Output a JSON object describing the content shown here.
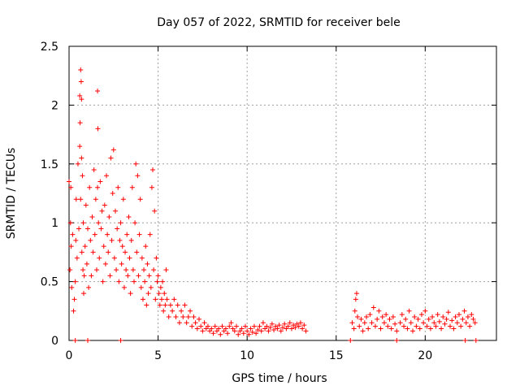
{
  "chart_data": {
    "type": "scatter",
    "title": "Day 057 of 2022, SRMTID for receiver bele",
    "xlabel": "GPS time / hours",
    "ylabel": "SRMTID / TECUs",
    "xlim": [
      0,
      24
    ],
    "ylim": [
      0,
      2.5
    ],
    "grid": true,
    "marker": "+",
    "color": "#ff0000",
    "x_ticks": [
      {
        "value": 0,
        "label": "0"
      },
      {
        "value": 5,
        "label": "5"
      },
      {
        "value": 10,
        "label": "10"
      },
      {
        "value": 15,
        "label": "15"
      },
      {
        "value": 20,
        "label": "20"
      }
    ],
    "y_ticks": [
      {
        "value": 0,
        "label": "0"
      },
      {
        "value": 0.5,
        "label": "0.5"
      },
      {
        "value": 1,
        "label": "1"
      },
      {
        "value": 1.5,
        "label": "1.5"
      },
      {
        "value": 2,
        "label": "2"
      },
      {
        "value": 2.5,
        "label": "2.5"
      }
    ],
    "series": [
      {
        "name": "SRMTID",
        "points": [
          [
            0.0,
            1.35
          ],
          [
            0.05,
            0.6
          ],
          [
            0.08,
            1.0
          ],
          [
            0.1,
            1.3
          ],
          [
            0.12,
            0.8
          ],
          [
            0.15,
            0.45
          ],
          [
            0.2,
            0.9
          ],
          [
            0.25,
            0.25
          ],
          [
            0.3,
            0.35
          ],
          [
            0.35,
            0.5
          ],
          [
            0.38,
            0.85
          ],
          [
            0.4,
            1.2
          ],
          [
            0.45,
            0.7
          ],
          [
            0.5,
            1.5
          ],
          [
            0.55,
            0.95
          ],
          [
            0.6,
            1.65
          ],
          [
            0.6,
            2.08
          ],
          [
            0.62,
            1.85
          ],
          [
            0.65,
            1.2
          ],
          [
            0.65,
            2.3
          ],
          [
            0.68,
            2.2
          ],
          [
            0.7,
            1.55
          ],
          [
            0.7,
            2.05
          ],
          [
            0.72,
            0.75
          ],
          [
            0.75,
            1.4
          ],
          [
            0.78,
            0.6
          ],
          [
            0.8,
            1.0
          ],
          [
            0.82,
            0.4
          ],
          [
            0.85,
            0.55
          ],
          [
            0.9,
            0.8
          ],
          [
            0.95,
            1.15
          ],
          [
            1.0,
            0.65
          ],
          [
            1.05,
            0.95
          ],
          [
            1.1,
            0.45
          ],
          [
            1.15,
            1.3
          ],
          [
            1.2,
            0.85
          ],
          [
            1.25,
            0.55
          ],
          [
            1.3,
            1.05
          ],
          [
            1.35,
            0.75
          ],
          [
            1.4,
            1.45
          ],
          [
            1.45,
            0.9
          ],
          [
            1.5,
            1.2
          ],
          [
            1.55,
            0.6
          ],
          [
            1.6,
            1.3
          ],
          [
            1.6,
            2.12
          ],
          [
            1.62,
            1.8
          ],
          [
            1.65,
            1.0
          ],
          [
            1.7,
            0.7
          ],
          [
            1.75,
            1.35
          ],
          [
            1.8,
            0.95
          ],
          [
            1.85,
            1.1
          ],
          [
            1.9,
            0.5
          ],
          [
            1.95,
            0.8
          ],
          [
            2.0,
            1.15
          ],
          [
            2.05,
            0.65
          ],
          [
            2.1,
            1.4
          ],
          [
            2.15,
            0.9
          ],
          [
            2.2,
            0.75
          ],
          [
            2.25,
            1.05
          ],
          [
            2.3,
            0.55
          ],
          [
            2.35,
            1.55
          ],
          [
            2.4,
            0.85
          ],
          [
            2.45,
            1.25
          ],
          [
            2.5,
            1.62
          ],
          [
            2.55,
            0.7
          ],
          [
            2.6,
            1.1
          ],
          [
            2.65,
            0.6
          ],
          [
            2.7,
            0.95
          ],
          [
            2.75,
            1.3
          ],
          [
            2.8,
            0.5
          ],
          [
            2.85,
            0.85
          ],
          [
            2.9,
            1.0
          ],
          [
            2.95,
            0.65
          ],
          [
            3.0,
            0.8
          ],
          [
            3.05,
            1.2
          ],
          [
            3.1,
            0.45
          ],
          [
            3.15,
            0.75
          ],
          [
            3.2,
            0.6
          ],
          [
            3.25,
            0.9
          ],
          [
            3.3,
            0.55
          ],
          [
            3.35,
            1.05
          ],
          [
            3.4,
            0.7
          ],
          [
            3.45,
            0.4
          ],
          [
            3.5,
            0.85
          ],
          [
            3.55,
            1.3
          ],
          [
            3.6,
            0.6
          ],
          [
            3.65,
            0.5
          ],
          [
            3.7,
            1.0
          ],
          [
            3.75,
            1.5
          ],
          [
            3.8,
            0.75
          ],
          [
            3.85,
            1.4
          ],
          [
            3.9,
            0.55
          ],
          [
            3.95,
            0.9
          ],
          [
            4.0,
            1.2
          ],
          [
            4.05,
            0.45
          ],
          [
            4.1,
            0.7
          ],
          [
            4.15,
            0.35
          ],
          [
            4.2,
            0.6
          ],
          [
            4.25,
            0.5
          ],
          [
            4.3,
            0.8
          ],
          [
            4.35,
            0.3
          ],
          [
            4.4,
            0.65
          ],
          [
            4.45,
            0.4
          ],
          [
            4.5,
            0.55
          ],
          [
            4.55,
            0.9
          ],
          [
            4.6,
            0.45
          ],
          [
            4.65,
            1.3
          ],
          [
            4.7,
            1.45
          ],
          [
            4.75,
            0.6
          ],
          [
            4.8,
            1.1
          ],
          [
            4.85,
            0.35
          ],
          [
            4.9,
            0.7
          ],
          [
            4.95,
            0.5
          ],
          [
            5.0,
            0.55
          ],
          [
            5.05,
            0.4
          ],
          [
            5.1,
            0.3
          ],
          [
            5.15,
            0.45
          ],
          [
            5.2,
            0.35
          ],
          [
            5.25,
            0.5
          ],
          [
            5.3,
            0.25
          ],
          [
            5.35,
            0.4
          ],
          [
            5.4,
            0.3
          ],
          [
            5.45,
            0.6
          ],
          [
            5.5,
            0.35
          ],
          [
            5.6,
            0.2
          ],
          [
            5.7,
            0.3
          ],
          [
            5.8,
            0.25
          ],
          [
            5.9,
            0.35
          ],
          [
            6.0,
            0.2
          ],
          [
            6.1,
            0.3
          ],
          [
            6.2,
            0.15
          ],
          [
            6.3,
            0.25
          ],
          [
            6.4,
            0.2
          ],
          [
            6.5,
            0.3
          ],
          [
            6.6,
            0.15
          ],
          [
            6.7,
            0.2
          ],
          [
            6.8,
            0.25
          ],
          [
            6.9,
            0.12
          ],
          [
            7.0,
            0.2
          ],
          [
            7.1,
            0.15
          ],
          [
            7.2,
            0.1
          ],
          [
            7.3,
            0.18
          ],
          [
            7.4,
            0.12
          ],
          [
            7.5,
            0.08
          ],
          [
            7.6,
            0.15
          ],
          [
            7.7,
            0.1
          ],
          [
            7.8,
            0.12
          ],
          [
            7.9,
            0.08
          ],
          [
            8.0,
            0.1
          ],
          [
            8.1,
            0.06
          ],
          [
            8.2,
            0.12
          ],
          [
            8.3,
            0.08
          ],
          [
            8.4,
            0.1
          ],
          [
            8.5,
            0.05
          ],
          [
            8.6,
            0.12
          ],
          [
            8.7,
            0.08
          ],
          [
            8.8,
            0.1
          ],
          [
            8.9,
            0.06
          ],
          [
            9.0,
            0.12
          ],
          [
            9.1,
            0.15
          ],
          [
            9.2,
            0.1
          ],
          [
            9.3,
            0.08
          ],
          [
            9.4,
            0.12
          ],
          [
            9.5,
            0.05
          ],
          [
            9.6,
            0.08
          ],
          [
            9.7,
            0.1
          ],
          [
            9.8,
            0.06
          ],
          [
            9.9,
            0.12
          ],
          [
            10.0,
            0.08
          ],
          [
            10.1,
            0.05
          ],
          [
            10.2,
            0.1
          ],
          [
            10.3,
            0.07
          ],
          [
            10.4,
            0.12
          ],
          [
            10.5,
            0.06
          ],
          [
            10.6,
            0.09
          ],
          [
            10.7,
            0.12
          ],
          [
            10.8,
            0.08
          ],
          [
            10.9,
            0.15
          ],
          [
            11.0,
            0.1
          ],
          [
            11.1,
            0.12
          ],
          [
            11.2,
            0.08
          ],
          [
            11.3,
            0.11
          ],
          [
            11.4,
            0.14
          ],
          [
            11.5,
            0.09
          ],
          [
            11.6,
            0.12
          ],
          [
            11.7,
            0.1
          ],
          [
            11.8,
            0.13
          ],
          [
            11.9,
            0.08
          ],
          [
            12.0,
            0.11
          ],
          [
            12.1,
            0.14
          ],
          [
            12.2,
            0.1
          ],
          [
            12.3,
            0.12
          ],
          [
            12.4,
            0.15
          ],
          [
            12.5,
            0.1
          ],
          [
            12.6,
            0.13
          ],
          [
            12.7,
            0.11
          ],
          [
            12.8,
            0.14
          ],
          [
            12.9,
            0.12
          ],
          [
            13.0,
            0.15
          ],
          [
            13.1,
            0.1
          ],
          [
            13.2,
            0.13
          ],
          [
            13.3,
            0.08
          ],
          [
            15.9,
            0.15
          ],
          [
            16.0,
            0.1
          ],
          [
            16.05,
            0.25
          ],
          [
            16.1,
            0.35
          ],
          [
            16.15,
            0.4
          ],
          [
            16.2,
            0.2
          ],
          [
            16.3,
            0.12
          ],
          [
            16.4,
            0.18
          ],
          [
            16.5,
            0.08
          ],
          [
            16.6,
            0.15
          ],
          [
            16.7,
            0.2
          ],
          [
            16.8,
            0.1
          ],
          [
            16.9,
            0.22
          ],
          [
            17.0,
            0.15
          ],
          [
            17.1,
            0.28
          ],
          [
            17.2,
            0.12
          ],
          [
            17.3,
            0.18
          ],
          [
            17.4,
            0.25
          ],
          [
            17.5,
            0.1
          ],
          [
            17.6,
            0.2
          ],
          [
            17.7,
            0.15
          ],
          [
            17.8,
            0.22
          ],
          [
            17.9,
            0.12
          ],
          [
            18.0,
            0.18
          ],
          [
            18.1,
            0.1
          ],
          [
            18.2,
            0.2
          ],
          [
            18.3,
            0.14
          ],
          [
            18.4,
            0.08
          ],
          [
            18.6,
            0.15
          ],
          [
            18.7,
            0.22
          ],
          [
            18.8,
            0.12
          ],
          [
            18.9,
            0.18
          ],
          [
            19.0,
            0.1
          ],
          [
            19.1,
            0.25
          ],
          [
            19.2,
            0.15
          ],
          [
            19.3,
            0.08
          ],
          [
            19.4,
            0.2
          ],
          [
            19.5,
            0.12
          ],
          [
            19.6,
            0.18
          ],
          [
            19.7,
            0.1
          ],
          [
            19.8,
            0.22
          ],
          [
            19.9,
            0.15
          ],
          [
            20.0,
            0.25
          ],
          [
            20.1,
            0.12
          ],
          [
            20.2,
            0.18
          ],
          [
            20.3,
            0.1
          ],
          [
            20.4,
            0.2
          ],
          [
            20.5,
            0.15
          ],
          [
            20.6,
            0.12
          ],
          [
            20.7,
            0.22
          ],
          [
            20.8,
            0.16
          ],
          [
            20.9,
            0.1
          ],
          [
            21.0,
            0.2
          ],
          [
            21.1,
            0.14
          ],
          [
            21.2,
            0.18
          ],
          [
            21.3,
            0.24
          ],
          [
            21.4,
            0.12
          ],
          [
            21.5,
            0.17
          ],
          [
            21.6,
            0.1
          ],
          [
            21.7,
            0.2
          ],
          [
            21.8,
            0.15
          ],
          [
            21.9,
            0.22
          ],
          [
            22.0,
            0.12
          ],
          [
            22.1,
            0.18
          ],
          [
            22.2,
            0.25
          ],
          [
            22.3,
            0.15
          ],
          [
            22.4,
            0.2
          ],
          [
            22.5,
            0.12
          ],
          [
            22.6,
            0.22
          ],
          [
            22.7,
            0.18
          ],
          [
            22.8,
            0.15
          ],
          [
            0.35,
            0.0
          ],
          [
            1.05,
            0.0
          ],
          [
            2.9,
            0.0
          ],
          [
            15.8,
            0.0
          ],
          [
            18.4,
            0.0
          ],
          [
            22.25,
            0.0
          ],
          [
            22.85,
            0.0
          ]
        ]
      }
    ]
  }
}
